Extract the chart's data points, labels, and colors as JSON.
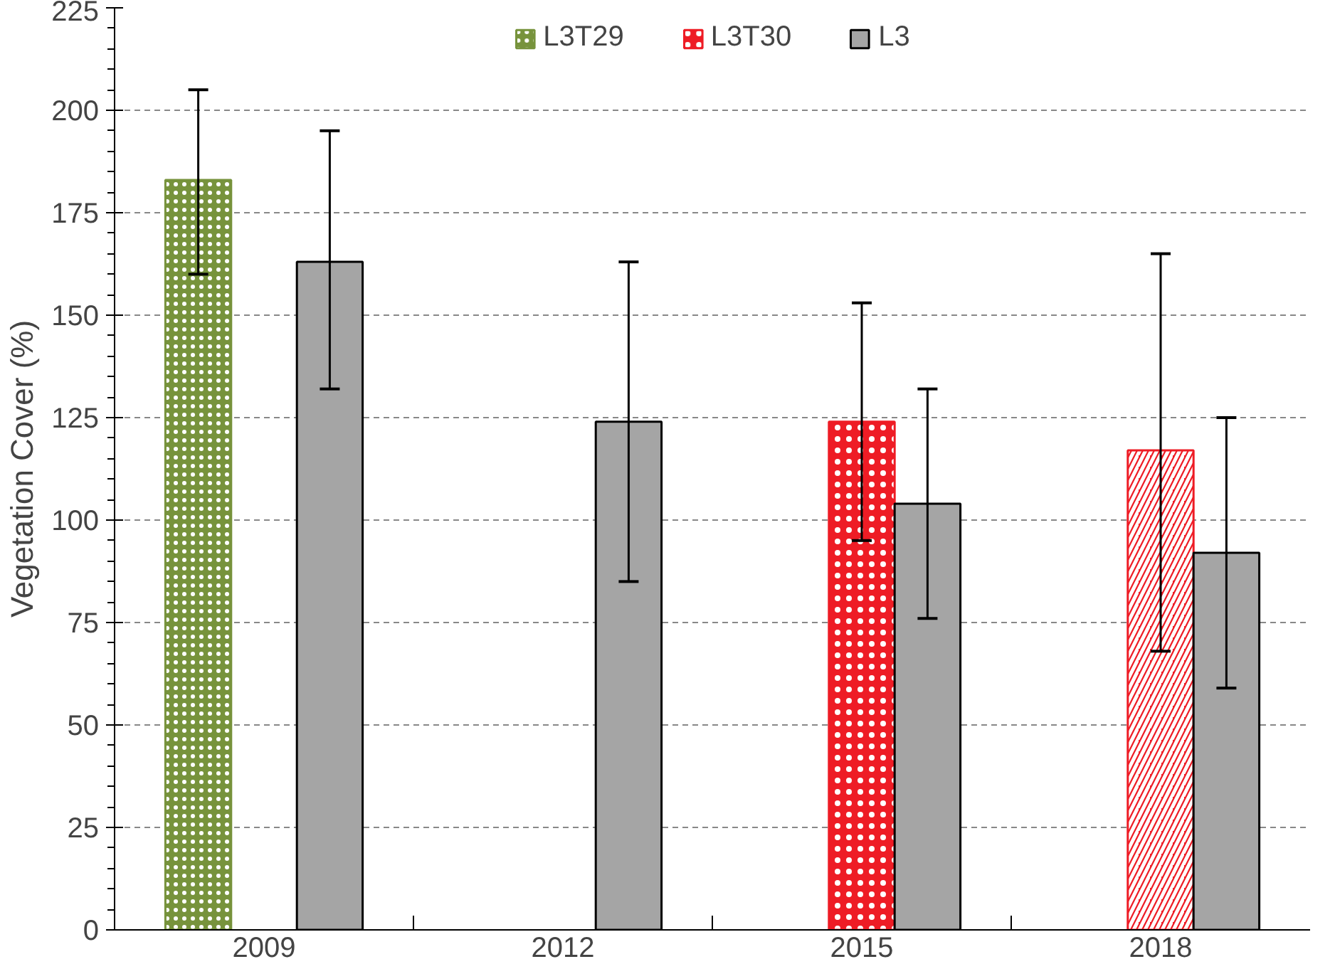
{
  "chart_data": {
    "type": "bar",
    "ylabel": "Vegetation Cover (%)",
    "categories": [
      "2009",
      "2012",
      "2015",
      "2018"
    ],
    "series": [
      {
        "name": "L3T29",
        "color": "#77933c",
        "values": [
          183,
          null,
          null,
          null
        ],
        "errors": [
          [
            160,
            205
          ],
          null,
          null,
          null
        ]
      },
      {
        "name": "L3T30",
        "color": "#ee1c25",
        "values": [
          null,
          null,
          124,
          117
        ],
        "errors": [
          null,
          null,
          [
            95,
            153
          ],
          [
            68,
            165
          ]
        ]
      },
      {
        "name": "L3",
        "color": "#a5a5a5",
        "values": [
          163,
          124,
          104,
          92
        ],
        "errors": [
          [
            132,
            195
          ],
          [
            85,
            163
          ],
          [
            76,
            132
          ],
          [
            59,
            125
          ]
        ]
      }
    ],
    "ylim": [
      0,
      225
    ],
    "yticks": [
      0,
      25,
      50,
      75,
      100,
      125,
      150,
      175,
      200,
      225
    ],
    "grid": "y",
    "legend": "top"
  }
}
